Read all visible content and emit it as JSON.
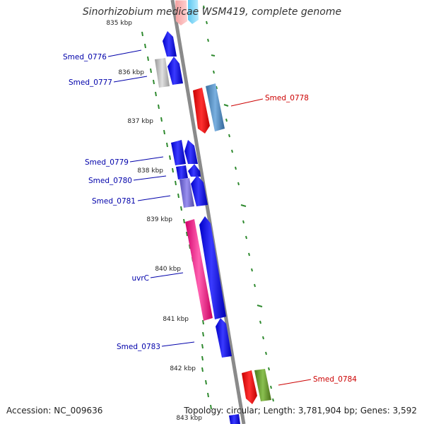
{
  "title": "Sinorhizobium medicae WSM419, complete genome",
  "footer": {
    "accession_label": "Accession:",
    "accession": "NC_009636",
    "topology_label": "Topology:",
    "topology": "circular",
    "length_label": "Length:",
    "length": "3,781,904 bp",
    "genes_label": "Genes:",
    "genes": "3,592"
  },
  "colors": {
    "backbone": "#8a8a8a",
    "tick": "#2f8a2f",
    "forward_gene": "#1010e8",
    "reverse_gene_label": "#cc0000",
    "forward_gene_label": "#0000aa"
  },
  "ruler": {
    "tick_labels": [
      "835 kbp",
      "836 kbp",
      "837 kbp",
      "838 kbp",
      "839 kbp",
      "840 kbp",
      "841 kbp",
      "842 kbp",
      "843 kbp"
    ]
  },
  "genes": [
    {
      "label": "Smed_0776",
      "strand": "+",
      "color": "#1010e8",
      "label_color": "#0000aa"
    },
    {
      "label": "Smed_0777",
      "strand": "+",
      "color": "#b0b0b0",
      "label_color": "#0000aa"
    },
    {
      "label": "Smed_0778",
      "strand": "-",
      "color": "#ee0000",
      "label_color": "#cc0000"
    },
    {
      "label": "Smed_0779",
      "strand": "+",
      "color": "#1010e8",
      "label_color": "#0000aa"
    },
    {
      "label": "Smed_0780",
      "strand": "+",
      "color": "#1010e8",
      "label_color": "#0000aa"
    },
    {
      "label": "Smed_0781",
      "strand": "+",
      "color": "#6a5acd",
      "label_color": "#0000aa"
    },
    {
      "label": "uvrC",
      "strand": "+",
      "color": "#e8147f",
      "label_color": "#0000aa"
    },
    {
      "label": "Smed_0783",
      "strand": "+",
      "color": "#1010e8",
      "label_color": "#0000aa"
    },
    {
      "label": "Smed_0784",
      "strand": "-",
      "color": "#ee0000",
      "label_color": "#cc0000"
    }
  ]
}
